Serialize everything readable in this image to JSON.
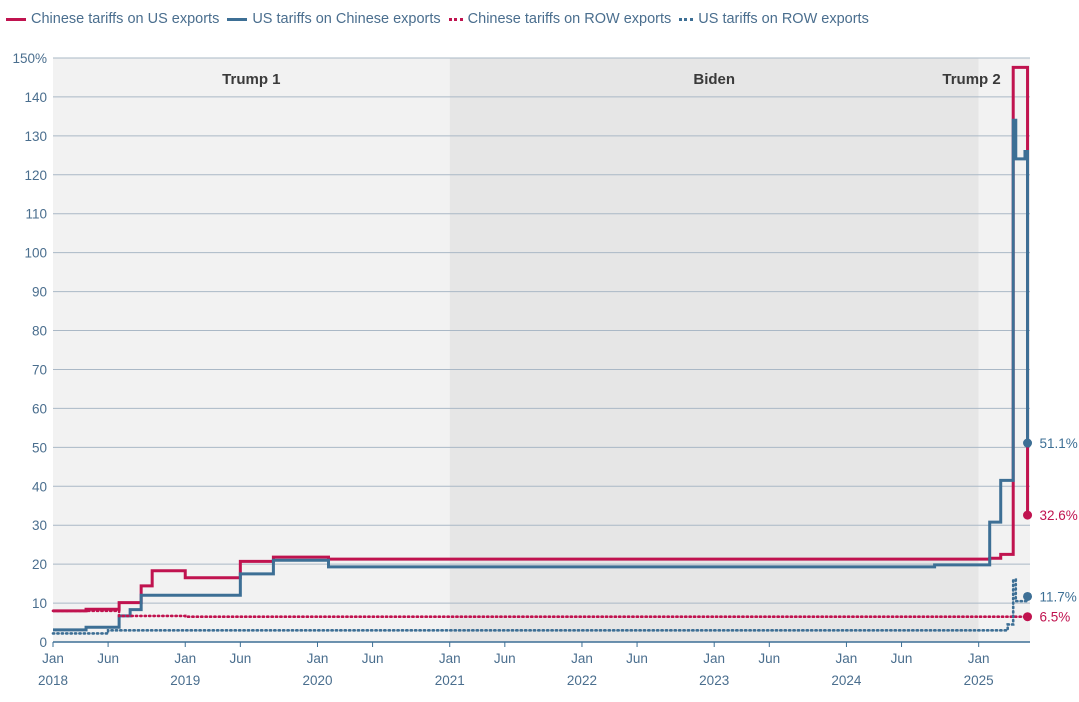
{
  "legend": [
    {
      "label": "Chinese tariffs on US exports",
      "style": "solid",
      "color": "#c0134f"
    },
    {
      "label": "US tariffs on Chinese exports",
      "style": "solid",
      "color": "#3d6f95"
    },
    {
      "label": "Chinese tariffs on ROW exports",
      "style": "dotted",
      "color": "#c0134f"
    },
    {
      "label": "US tariffs on ROW exports",
      "style": "dotted",
      "color": "#3d6f95"
    }
  ],
  "chart_data": {
    "type": "line",
    "step": true,
    "title": "",
    "xlabel": "",
    "ylabel": "",
    "ylim": [
      0,
      150
    ],
    "y_ticks": [
      {
        "value": 0,
        "label": "0"
      },
      {
        "value": 10,
        "label": "10"
      },
      {
        "value": 20,
        "label": "20"
      },
      {
        "value": 30,
        "label": "30"
      },
      {
        "value": 40,
        "label": "40"
      },
      {
        "value": 50,
        "label": "50"
      },
      {
        "value": 60,
        "label": "60"
      },
      {
        "value": 70,
        "label": "70"
      },
      {
        "value": 80,
        "label": "80"
      },
      {
        "value": 90,
        "label": "90"
      },
      {
        "value": 100,
        "label": "100"
      },
      {
        "value": 110,
        "label": "110"
      },
      {
        "value": 120,
        "label": "120"
      },
      {
        "value": 130,
        "label": "130"
      },
      {
        "value": 140,
        "label": "140"
      },
      {
        "value": 150,
        "label": "150%"
      }
    ],
    "xlim": [
      "2018-01",
      "2025-06"
    ],
    "x_ticks": [
      {
        "date": "2018-01",
        "label": "Jan",
        "year": "2018"
      },
      {
        "date": "2018-06",
        "label": "Jun",
        "year": ""
      },
      {
        "date": "2019-01",
        "label": "Jan",
        "year": "2019"
      },
      {
        "date": "2019-06",
        "label": "Jun",
        "year": ""
      },
      {
        "date": "2020-01",
        "label": "Jan",
        "year": "2020"
      },
      {
        "date": "2020-06",
        "label": "Jun",
        "year": ""
      },
      {
        "date": "2021-01",
        "label": "Jan",
        "year": "2021"
      },
      {
        "date": "2021-06",
        "label": "Jun",
        "year": ""
      },
      {
        "date": "2022-01",
        "label": "Jan",
        "year": "2022"
      },
      {
        "date": "2022-06",
        "label": "Jun",
        "year": ""
      },
      {
        "date": "2023-01",
        "label": "Jan",
        "year": "2023"
      },
      {
        "date": "2023-06",
        "label": "Jun",
        "year": ""
      },
      {
        "date": "2024-01",
        "label": "Jan",
        "year": "2024"
      },
      {
        "date": "2024-06",
        "label": "Jun",
        "year": ""
      },
      {
        "date": "2025-01",
        "label": "Jan",
        "year": "2025"
      }
    ],
    "periods": [
      {
        "label": "Trump 1",
        "start": "2018-01",
        "end": "2021-01",
        "shade": "#f2f2f2"
      },
      {
        "label": "Biden",
        "start": "2021-01",
        "end": "2025-01",
        "shade": "#e6e6e6"
      },
      {
        "label": "Trump 2",
        "start": "2025-01",
        "end": "2025-06",
        "shade": "#f2f2f2"
      }
    ],
    "grid": true,
    "legend_position": "top",
    "series": [
      {
        "name": "Chinese tariffs on US exports",
        "style": "solid",
        "color": "#c0134f",
        "points": [
          [
            "2018-01",
            8.0
          ],
          [
            "2018-04",
            8.4
          ],
          [
            "2018-07",
            10.1
          ],
          [
            "2018-09",
            14.4
          ],
          [
            "2018-10",
            18.3
          ],
          [
            "2019-01",
            16.5
          ],
          [
            "2019-06",
            20.7
          ],
          [
            "2019-09",
            21.8
          ],
          [
            "2020-02",
            21.3
          ],
          [
            "2025-02",
            21.5
          ],
          [
            "2025-03",
            22.5
          ],
          [
            "2025-04-05",
            147.6
          ],
          [
            "2025-05-14",
            32.6
          ]
        ],
        "end_label": "32.6%"
      },
      {
        "name": "US tariffs on Chinese exports",
        "style": "solid",
        "color": "#3d6f95",
        "points": [
          [
            "2018-01",
            3.1
          ],
          [
            "2018-04",
            3.8
          ],
          [
            "2018-07",
            6.7
          ],
          [
            "2018-08",
            8.3
          ],
          [
            "2018-09",
            12.0
          ],
          [
            "2019-06",
            17.5
          ],
          [
            "2019-09",
            21.0
          ],
          [
            "2020-02",
            19.3
          ],
          [
            "2024-09",
            19.8
          ],
          [
            "2025-02",
            30.8
          ],
          [
            "2025-03",
            41.5
          ],
          [
            "2025-04-05",
            134.0
          ],
          [
            "2025-04-12",
            124.1
          ],
          [
            "2025-05-07",
            126.0
          ],
          [
            "2025-05-14",
            51.1
          ]
        ],
        "end_label": "51.1%"
      },
      {
        "name": "Chinese tariffs on ROW exports",
        "style": "dotted",
        "color": "#c0134f",
        "points": [
          [
            "2018-01",
            8.0
          ],
          [
            "2018-07",
            6.7
          ],
          [
            "2019-01",
            6.5
          ],
          [
            "2025-05-14",
            6.5
          ]
        ],
        "end_label": "6.5%"
      },
      {
        "name": "US tariffs on ROW exports",
        "style": "dotted",
        "color": "#3d6f95",
        "points": [
          [
            "2018-01",
            2.2
          ],
          [
            "2018-06",
            3.0
          ],
          [
            "2025-03",
            3.0
          ],
          [
            "2025-03-20",
            4.5
          ],
          [
            "2025-04-05",
            16.0
          ],
          [
            "2025-04-12",
            10.5
          ],
          [
            "2025-05-14",
            11.7
          ]
        ],
        "end_label": "11.7%"
      }
    ]
  }
}
